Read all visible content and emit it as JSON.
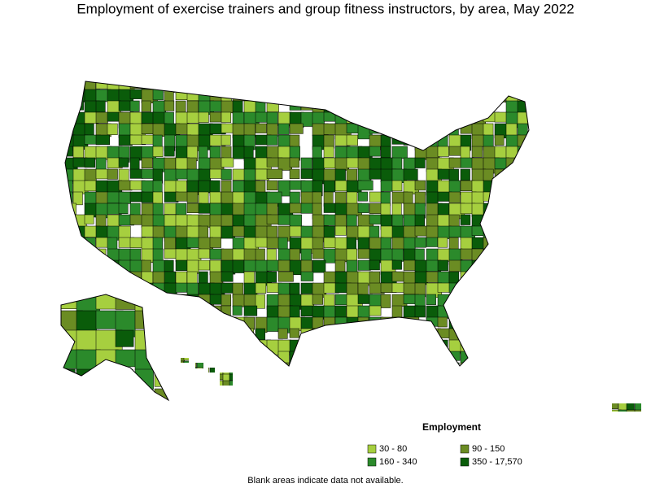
{
  "title": "Employment of exercise trainers and group fitness instructors, by area, May 2022",
  "legend": {
    "title": "Employment",
    "items": [
      {
        "label": "30 - 80",
        "color": "#a6cf3f"
      },
      {
        "label": "90 - 150",
        "color": "#6b8c23"
      },
      {
        "label": "160 - 340",
        "color": "#2b8a2b"
      },
      {
        "label": "350 - 17,570",
        "color": "#0a5c0a"
      }
    ]
  },
  "note": "Blank areas indicate data not available."
}
